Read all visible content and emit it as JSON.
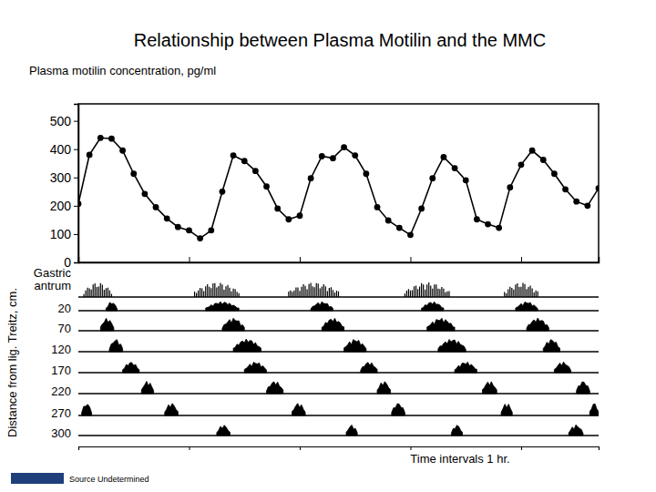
{
  "chart_data": [
    {
      "type": "line",
      "title": "Relationship between Plasma Motilin and the MMC",
      "ylabel": "Plasma motilin concentration, pg/ml",
      "x": [
        0,
        0.1,
        0.2,
        0.3,
        0.4,
        0.5,
        0.6,
        0.7,
        0.8,
        0.9,
        1.0,
        1.1,
        1.2,
        1.3,
        1.4,
        1.5,
        1.6,
        1.7,
        1.8,
        1.9,
        2.0,
        2.1,
        2.2,
        2.3,
        2.4,
        2.5,
        2.6,
        2.7,
        2.8,
        2.9,
        3.0,
        3.1,
        3.2,
        3.3,
        3.4,
        3.5,
        3.6,
        3.7,
        3.8,
        3.9,
        4.0,
        4.1,
        4.2,
        4.3,
        4.4,
        4.5,
        4.6,
        4.7
      ],
      "values": [
        207,
        380,
        440,
        437,
        395,
        313,
        242,
        195,
        155,
        125,
        113,
        85,
        113,
        250,
        378,
        358,
        323,
        268,
        190,
        152,
        165,
        297,
        375,
        368,
        407,
        378,
        313,
        195,
        148,
        122,
        97,
        190,
        297,
        372,
        333,
        290,
        152,
        135,
        122,
        265,
        345,
        395,
        362,
        313,
        258,
        215,
        200,
        262
      ],
      "color": "#000000",
      "marker": "circle",
      "xlim": [
        0,
        4.7
      ],
      "xticks": [
        0,
        1,
        2,
        3,
        4
      ],
      "ylim": [
        0,
        560
      ],
      "yticks": [
        0,
        100,
        200,
        300,
        400,
        500
      ],
      "tick_labels": "y",
      "grid": false
    },
    {
      "type": "manometry",
      "ylabel": "Distance from lig. Treitz, cm.",
      "xlabel": "Time intervals 1 hr.",
      "source": "Source Undetermined",
      "color": "#000000",
      "xlim": [
        0,
        4.7
      ],
      "xticks": [
        0,
        1,
        2,
        3,
        4
      ],
      "tick_labels": false,
      "categories": [
        "Gastric antrum",
        "20",
        "70",
        "120",
        "170",
        "220",
        "270",
        "300"
      ],
      "bursts": [
        [
          [
            0.05,
            0.3
          ],
          [
            1.05,
            1.45
          ],
          [
            1.9,
            2.35
          ],
          [
            2.95,
            3.35
          ],
          [
            3.85,
            4.15
          ]
        ],
        [
          [
            0.25,
            0.35
          ],
          [
            1.15,
            1.45
          ],
          [
            2.1,
            2.3
          ],
          [
            3.1,
            3.3
          ],
          [
            3.95,
            4.15
          ]
        ],
        [
          [
            0.2,
            0.32
          ],
          [
            1.3,
            1.5
          ],
          [
            2.2,
            2.4
          ],
          [
            3.15,
            3.4
          ],
          [
            4.05,
            4.25
          ]
        ],
        [
          [
            0.28,
            0.4
          ],
          [
            1.4,
            1.65
          ],
          [
            2.4,
            2.6
          ],
          [
            3.25,
            3.5
          ],
          [
            4.2,
            4.35
          ]
        ],
        [
          [
            0.4,
            0.55
          ],
          [
            1.5,
            1.7
          ],
          [
            2.55,
            2.7
          ],
          [
            3.4,
            3.6
          ],
          [
            4.3,
            4.45
          ]
        ],
        [
          [
            0.57,
            0.68
          ],
          [
            1.7,
            1.85
          ],
          [
            2.7,
            2.82
          ],
          [
            3.65,
            3.78
          ],
          [
            4.5,
            4.62
          ]
        ],
        [
          [
            0.03,
            0.12
          ],
          [
            0.78,
            0.9
          ],
          [
            1.93,
            2.05
          ],
          [
            2.83,
            2.95
          ],
          [
            3.82,
            3.92
          ],
          [
            4.62,
            4.7
          ]
        ],
        [
          [
            1.25,
            1.37
          ],
          [
            2.42,
            2.52
          ],
          [
            3.37,
            3.47
          ],
          [
            4.43,
            4.56
          ]
        ]
      ]
    }
  ]
}
